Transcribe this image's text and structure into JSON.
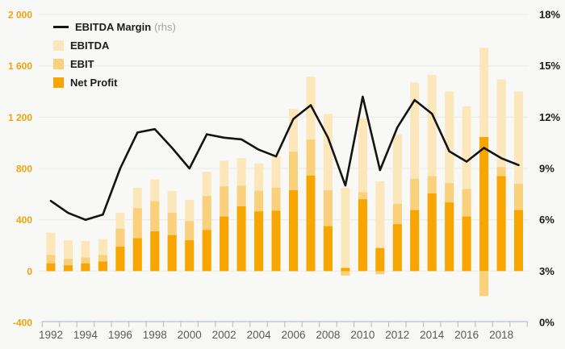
{
  "chart_data": {
    "type": "combo",
    "title": "",
    "x": [
      1992,
      1993,
      1994,
      1995,
      1996,
      1997,
      1998,
      1999,
      2000,
      2001,
      2002,
      2003,
      2004,
      2005,
      2006,
      2007,
      2008,
      2009,
      2010,
      2011,
      2012,
      2013,
      2014,
      2015,
      2016,
      2017,
      2018,
      2019
    ],
    "series": [
      {
        "name": "EBITDA",
        "type": "bar",
        "axis": "left",
        "color": "#FCE7BB",
        "values": [
          300,
          240,
          235,
          250,
          455,
          650,
          715,
          625,
          555,
          775,
          860,
          880,
          840,
          900,
          1265,
          1515,
          1225,
          650,
          1190,
          700,
          1065,
          1470,
          1530,
          1400,
          1285,
          1740,
          1495,
          1400
        ]
      },
      {
        "name": "EBIT",
        "type": "bar",
        "axis": "left",
        "color": "#F9D07B",
        "values": [
          125,
          95,
          105,
          125,
          330,
          490,
          545,
          455,
          390,
          585,
          660,
          665,
          625,
          650,
          930,
          1025,
          630,
          -35,
          615,
          -25,
          525,
          720,
          740,
          685,
          640,
          -195,
          810,
          680
        ]
      },
      {
        "name": "Net Profit",
        "type": "bar",
        "axis": "left",
        "color": "#F7A600",
        "values": [
          60,
          45,
          60,
          75,
          190,
          255,
          310,
          280,
          240,
          320,
          425,
          505,
          465,
          470,
          630,
          745,
          350,
          25,
          560,
          180,
          365,
          475,
          605,
          535,
          425,
          1045,
          740,
          475
        ]
      },
      {
        "name": "EBITDA Margin",
        "type": "line",
        "axis": "right",
        "color": "#141414",
        "values": [
          7.1,
          6.4,
          6.0,
          6.3,
          9.0,
          11.1,
          11.3,
          10.2,
          9.0,
          11.0,
          10.8,
          10.7,
          10.1,
          9.7,
          11.9,
          12.7,
          10.8,
          8.0,
          13.2,
          8.9,
          11.4,
          13.0,
          12.2,
          10.0,
          9.4,
          10.2,
          9.6,
          9.2
        ]
      }
    ],
    "left_axis": {
      "tick_labels": [
        "2 000",
        "1 600",
        "1 200",
        "800",
        "400",
        "0",
        "-400"
      ],
      "tick_values": [
        2000,
        1600,
        1200,
        800,
        400,
        0,
        -400
      ],
      "range": [
        -400,
        2000
      ],
      "label_color": "#EFA30A"
    },
    "right_axis": {
      "tick_labels": [
        "18%",
        "15%",
        "12%",
        "9%",
        "6%",
        "3%",
        "0%"
      ],
      "tick_values": [
        18,
        15,
        12,
        9,
        6,
        3,
        0
      ],
      "range": [
        0,
        18
      ],
      "label_color": "#1a1a1a"
    },
    "x_axis": {
      "label_years": [
        1992,
        1994,
        1996,
        1998,
        2000,
        2002,
        2004,
        2006,
        2008,
        2010,
        2012,
        2014,
        2016,
        2018
      ],
      "labels": [
        "1992",
        "1994",
        "1996",
        "1998",
        "2000",
        "2002",
        "2004",
        "2006",
        "2008",
        "2010",
        "2012",
        "2014",
        "2016",
        "2018"
      ],
      "label_color": "#5a5a5a",
      "axis_color": "#b7c3d8"
    },
    "grid": {
      "on": true,
      "color": "#e9e9e6"
    },
    "legend_position": "top-left"
  },
  "legend": {
    "margin_label": "EBITDA Margin",
    "margin_suffix": "(rhs)",
    "ebitda_label": "EBITDA",
    "ebit_label": "EBIT",
    "net_profit_label": "Net Profit"
  },
  "colors": {
    "background": "#f8f8f6",
    "ebitda": "#FCE7BB",
    "ebit": "#F9D07B",
    "net_profit": "#F7A600",
    "margin_line": "#141414"
  }
}
